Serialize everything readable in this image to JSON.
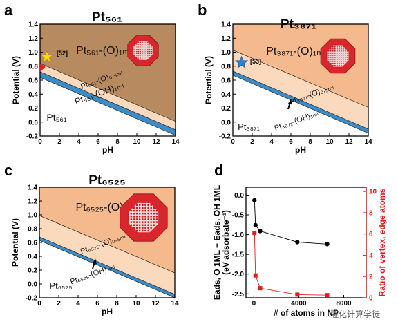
{
  "colors": {
    "o1ml_dark": "#b88a60",
    "o1ml": "#f4b98c",
    "o05ml": "#fbd9bd",
    "oh1ml": "#3d8cc7",
    "clean": "#ffffff",
    "series_black": "#000000",
    "series_red": "#e31a1c",
    "star_gold": "#f5d90a",
    "star_blue": "#2f80d0",
    "np_red": "#d8262d",
    "watermark": "#555555"
  },
  "panels": [
    {
      "letter": "a",
      "title": "Pt₅₆₁",
      "ylabel": "Potential (V)",
      "xlabel": "pH",
      "xticks": [
        "0",
        "2",
        "4",
        "6",
        "8",
        "10",
        "12",
        "14"
      ],
      "yticks": [
        "-0.2",
        "0.0",
        "0.2",
        "0.4",
        "0.6",
        "0.8",
        "1.0",
        "1.2",
        "1.4"
      ],
      "label_o1ml": "Pt₅₆₁-(O)₁ₘₗ",
      "label_o05ml": "Pt₅₆₁-(O)₀.₅ₘₗ",
      "label_oh1ml": "Pt₅₆₁-(OH)₁ₘₗ",
      "label_clean": "Pt₅₆₁",
      "ref": "[52]",
      "marker": "gold-star-icon"
    },
    {
      "letter": "b",
      "title": "Pt₃₈₇₁",
      "ylabel": "Potential (V)",
      "xlabel": "pH",
      "xticks": [
        "0",
        "2",
        "4",
        "6",
        "8",
        "10",
        "12",
        "14"
      ],
      "yticks": [
        "-0.2",
        "0.0",
        "0.2",
        "0.4",
        "0.6",
        "0.8",
        "1.0",
        "1.2",
        "1.4"
      ],
      "label_o1ml": "Pt₃₈₇₁-(O)₁ₘₗ",
      "label_o05ml": "Pt₃₈₇₁-(O)₀.₅ₘₗ",
      "label_oh1ml": "Pt₃₈₇₁-(OH)₁ₘₗ",
      "label_clean": "Pt₃₈₇₁",
      "ref": "[53]",
      "marker": "blue-star-icon"
    },
    {
      "letter": "c",
      "title": "Pt₆₅₂₅",
      "ylabel": "Potential (V)",
      "xlabel": "pH",
      "xticks": [
        "0",
        "2",
        "4",
        "6",
        "8",
        "10",
        "12",
        "14"
      ],
      "yticks": [
        "-0.2",
        "0.0",
        "0.2",
        "0.4",
        "0.6",
        "0.8",
        "1.0",
        "1.2",
        "1.4"
      ],
      "label_o1ml": "Pt₆₅₂₅-(O)₁ₘₗ",
      "label_o05ml": "Pt₆₅₂₅-(O)₀.₅ₘₗ",
      "label_oh1ml": "Pt₆₅₂₅-(OH)₁ₘₗ",
      "label_clean": "Pt₆₅₂₅"
    }
  ],
  "panel_d": {
    "letter": "d",
    "xlabel": "# of atoms in NP",
    "ylabel_left_line1": "E",
    "ylabel_left": "Eads, O 1ML − Eads, OH 1ML",
    "ylabel_left_line2": "(eV adsorbate⁻¹)",
    "ylabel_right": "Ratio of vertex, edge atoms",
    "xticks": [
      "0",
      "4000",
      "8000"
    ],
    "yticks_left": [
      "0.0",
      "-0.5",
      "-1.0",
      "-1.5",
      "-2.0",
      "-2.5"
    ],
    "yticks_right": [
      "0",
      "2",
      "4",
      "6",
      "8",
      "10"
    ]
  },
  "watermark": "催化计算学徒",
  "chart_data": [
    {
      "type": "area",
      "title": "Pt561",
      "xlabel": "pH",
      "ylabel": "Potential (V)",
      "xlim": [
        0,
        14
      ],
      "ylim": [
        -0.2,
        1.4
      ],
      "grid": false,
      "boundaries": [
        {
          "phases": "Pt561-(O)1ML / Pt561-(O)0.5ML",
          "x": [
            0,
            14
          ],
          "y": [
            0.84,
            0.01
          ]
        },
        {
          "phases": "Pt561-(O)0.5ML / Pt561-(OH)1ML",
          "x": [
            0,
            14
          ],
          "y": [
            0.72,
            -0.11
          ]
        },
        {
          "phases": "Pt561-(OH)1ML / Pt561",
          "x": [
            0,
            14
          ],
          "y": [
            0.64,
            -0.19
          ]
        }
      ],
      "regions": [
        "Pt561-(O)1ML",
        "Pt561-(O)0.5ML",
        "Pt561-(OH)1ML",
        "Pt561"
      ],
      "points": [
        {
          "label": "[52]",
          "x": 0.7,
          "y": 0.93
        }
      ]
    },
    {
      "type": "area",
      "title": "Pt3871",
      "xlabel": "pH",
      "ylabel": "Potential (V)",
      "xlim": [
        0,
        14
      ],
      "ylim": [
        -0.2,
        1.4
      ],
      "grid": false,
      "boundaries": [
        {
          "phases": "Pt3871-(O)1ML / Pt3871-(O)0.5ML",
          "x": [
            0,
            14
          ],
          "y": [
            1.03,
            0.21
          ]
        },
        {
          "phases": "Pt3871-(O)0.5ML / Pt3871-(OH)1ML",
          "x": [
            0,
            14
          ],
          "y": [
            0.73,
            -0.1
          ]
        },
        {
          "phases": "Pt3871-(OH)1ML / Pt3871",
          "x": [
            0,
            14
          ],
          "y": [
            0.67,
            -0.16
          ]
        }
      ],
      "regions": [
        "Pt3871-(O)1ML",
        "Pt3871-(O)0.5ML",
        "Pt3871-(OH)1ML",
        "Pt3871"
      ],
      "points": [
        {
          "label": "[53]",
          "x": 0.9,
          "y": 0.85
        }
      ]
    },
    {
      "type": "area",
      "title": "Pt6525",
      "xlabel": "pH",
      "ylabel": "Potential (V)",
      "xlim": [
        0,
        14
      ],
      "ylim": [
        -0.2,
        1.4
      ],
      "grid": false,
      "boundaries": [
        {
          "phases": "Pt6525-(O)1ML / Pt6525-(O)0.5ML",
          "x": [
            0,
            14
          ],
          "y": [
            0.99,
            0.16
          ]
        },
        {
          "phases": "Pt6525-(O)0.5ML / Pt6525-(OH)1ML",
          "x": [
            0,
            14
          ],
          "y": [
            0.68,
            -0.15
          ]
        },
        {
          "phases": "Pt6525-(OH)1ML / Pt6525",
          "x": [
            0,
            14
          ],
          "y": [
            0.63,
            -0.2
          ]
        }
      ],
      "regions": [
        "Pt6525-(O)1ML",
        "Pt6525-(O)0.5ML",
        "Pt6525-(OH)1ML",
        "Pt6525"
      ]
    },
    {
      "type": "scatter",
      "xlabel": "# of atoms in NP",
      "xlim": [
        -700,
        10000
      ],
      "ylim_left": [
        -2.6,
        0.2
      ],
      "ylim_right": [
        0,
        10.4
      ],
      "grid": false,
      "series": [
        {
          "axis": "left",
          "x": [
            55,
            147,
            561,
            3871,
            6525
          ],
          "y": [
            -0.13,
            -0.76,
            -0.91,
            -1.19,
            -1.24
          ]
        },
        {
          "axis": "right",
          "x": [
            55,
            147,
            561,
            3871,
            6525
          ],
          "y": [
            6.1,
            2.1,
            0.9,
            0.3,
            0.25
          ]
        }
      ]
    }
  ]
}
